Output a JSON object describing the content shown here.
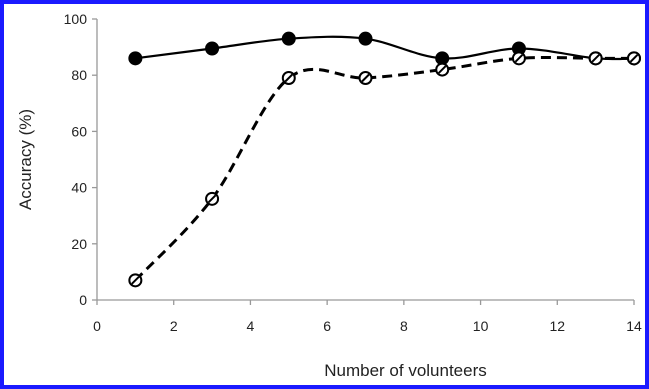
{
  "chart_data": {
    "type": "line",
    "title": "",
    "xlabel": "Number of volunteers",
    "ylabel": "Accuracy (%)",
    "xlim": [
      0,
      14
    ],
    "ylim": [
      0,
      100
    ],
    "xticks": [
      "0",
      "2",
      "4",
      "6",
      "8",
      "10",
      "12",
      "14"
    ],
    "yticks": [
      "0",
      "20",
      "40",
      "60",
      "80",
      "100"
    ],
    "grid": false,
    "legend": "none",
    "series": [
      {
        "style": "solid",
        "marker": "filled-circle",
        "color": "#000000",
        "x": [
          1,
          3,
          5,
          7,
          9,
          11,
          13,
          14
        ],
        "y": [
          86,
          89.5,
          93,
          93,
          86,
          89.5,
          86,
          86
        ]
      },
      {
        "style": "dashed",
        "marker": "open-circle-slash",
        "color": "#000000",
        "x": [
          1,
          3,
          5,
          7,
          9,
          11,
          13,
          14
        ],
        "y": [
          7,
          36,
          79,
          79,
          82,
          86,
          86,
          86
        ]
      }
    ]
  },
  "colors": {
    "frame": "#1a1aff",
    "axis": "#999999"
  }
}
